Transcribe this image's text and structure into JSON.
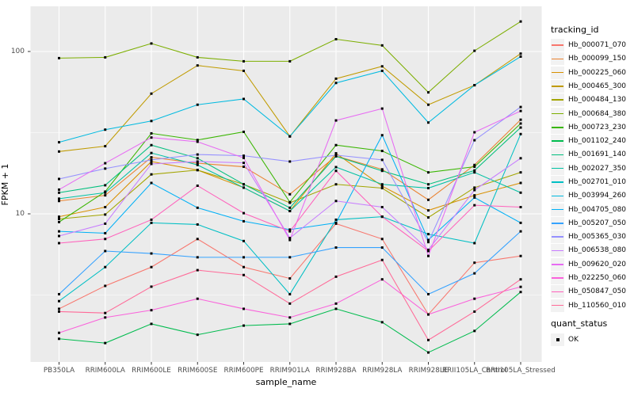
{
  "chart_data": {
    "type": "line",
    "title": "",
    "xlabel": "sample_name",
    "ylabel": "FPKM + 1",
    "y_scale": "log10",
    "ylim": [
      1.12,
      199
    ],
    "grid": "on",
    "panel_bg": "#EBEBEB",
    "gridline_color": "#FFFFFF",
    "point_color": "#000000",
    "point_shape": "square",
    "legend_position": "right",
    "y_ticks": [
      {
        "label": "100",
        "value": 100
      },
      {
        "label": "10",
        "value": 10
      }
    ],
    "y_minor_gridlines": [
      31.62,
      3.162
    ],
    "x_categories": [
      "PB350LA",
      "RRIM600LA",
      "RRIM600LE",
      "RRIM600SE",
      "RRIM600PE",
      "RRIM901LA",
      "RRIM928BA",
      "RRIM928LA",
      "RRIM928LE",
      "RRII105LA_Control",
      "RRII105LA_Stressed"
    ],
    "legend": {
      "tracking_title": "tracking_id",
      "quant_title": "quant_status",
      "quant_items": [
        {
          "label": "OK",
          "marker": "black-square"
        }
      ]
    },
    "series": [
      {
        "name": "Hb_000071_070",
        "color": "#F8766D",
        "values": [
          2.6,
          3.6,
          4.7,
          7.0,
          4.7,
          4.0,
          8.7,
          7.0,
          2.4,
          5.0,
          5.5
        ]
      },
      {
        "name": "Hb_000099_150",
        "color": "#EA8331",
        "values": [
          12.0,
          13.0,
          22.3,
          20.5,
          19.5,
          13.2,
          22.7,
          18.8,
          12.2,
          20.0,
          38
        ]
      },
      {
        "name": "Hb_000225_060",
        "color": "#D89000",
        "values": [
          9.6,
          11.0,
          21.0,
          18.6,
          14.5,
          10.4,
          23.6,
          14.8,
          10.5,
          13.0,
          15.5
        ]
      },
      {
        "name": "Hb_000465_300",
        "color": "#C09B00",
        "values": [
          24.2,
          26.1,
          55,
          82,
          76,
          30,
          68,
          81,
          47,
          62,
          97
        ]
      },
      {
        "name": "Hb_000484_130",
        "color": "#A3A500",
        "values": [
          9.3,
          9.9,
          17.5,
          18.6,
          15.2,
          11.7,
          15.2,
          14.4,
          9.5,
          14.5,
          18
        ]
      },
      {
        "name": "Hb_000684_380",
        "color": "#7CAE00",
        "values": [
          91,
          92,
          112,
          92,
          87,
          87,
          119,
          109,
          56,
          101,
          153
        ]
      },
      {
        "name": "Hb_000723_230",
        "color": "#39B600",
        "values": [
          8.9,
          13.7,
          31.3,
          28.5,
          32,
          11.8,
          26.5,
          24.4,
          18,
          19.5,
          36
        ]
      },
      {
        "name": "Hb_001102_240",
        "color": "#00BB4E",
        "values": [
          1.7,
          1.6,
          2.1,
          1.8,
          2.05,
          2.1,
          2.6,
          2.15,
          1.4,
          1.9,
          3.3
        ]
      },
      {
        "name": "Hb_001691_140",
        "color": "#00BF7D",
        "values": [
          13.5,
          15.0,
          26.5,
          22.0,
          15.2,
          10.9,
          22.6,
          18.4,
          15.2,
          18.5,
          34
        ]
      },
      {
        "name": "Hb_002027_350",
        "color": "#00C1A3",
        "values": [
          12.4,
          13.5,
          23.7,
          20.0,
          14.5,
          10.4,
          19.4,
          15.2,
          14.4,
          18.0,
          13.5
        ]
      },
      {
        "name": "Hb_002701_010",
        "color": "#00BFC4",
        "values": [
          2.9,
          4.7,
          8.8,
          8.6,
          6.8,
          3.2,
          9.2,
          9.6,
          7.5,
          6.6,
          31
        ]
      },
      {
        "name": "Hb_003994_260",
        "color": "#00BAE0",
        "values": [
          27.6,
          33,
          37.3,
          47,
          51,
          30,
          64,
          76,
          36.5,
          62,
          93
        ]
      },
      {
        "name": "Hb_004705_080",
        "color": "#00B0F6",
        "values": [
          7.8,
          7.6,
          15.5,
          10.9,
          9.0,
          8.0,
          8.8,
          30.5,
          6.9,
          12.6,
          8.8
        ]
      },
      {
        "name": "Hb_005207_050",
        "color": "#35A2FF",
        "values": [
          3.2,
          5.9,
          5.7,
          5.4,
          5.4,
          5.4,
          6.2,
          6.2,
          3.2,
          4.3,
          7.8
        ]
      },
      {
        "name": "Hb_005365_030",
        "color": "#9590FF",
        "values": [
          16.4,
          19,
          21.5,
          23.2,
          22.8,
          21,
          23,
          21.5,
          6.7,
          28.4,
          45.5
        ]
      },
      {
        "name": "Hb_006538_080",
        "color": "#C77CFF",
        "values": [
          7.3,
          8.7,
          20.3,
          21,
          20.6,
          7.1,
          12,
          11,
          6.0,
          14,
          22
        ]
      },
      {
        "name": "Hb_009620_020",
        "color": "#E76BF3",
        "values": [
          14.1,
          20.5,
          29.5,
          27.8,
          22.1,
          6.9,
          37.6,
          44.5,
          5.5,
          31.8,
          43
        ]
      },
      {
        "name": "Hb_022250_060",
        "color": "#FA62DB",
        "values": [
          1.85,
          2.3,
          2.55,
          3.0,
          2.6,
          2.3,
          2.8,
          3.95,
          2.4,
          3.0,
          3.55
        ]
      },
      {
        "name": "Hb_050847_050",
        "color": "#FF62BC",
        "values": [
          6.6,
          7.0,
          9.2,
          14.9,
          10.1,
          7.8,
          18.4,
          9.6,
          5.9,
          11.3,
          11.0
        ]
      },
      {
        "name": "Hb_110560_010",
        "color": "#FF6A98",
        "values": [
          2.5,
          2.45,
          3.56,
          4.5,
          4.2,
          2.8,
          4.1,
          5.2,
          1.67,
          2.5,
          3.95
        ]
      }
    ]
  }
}
